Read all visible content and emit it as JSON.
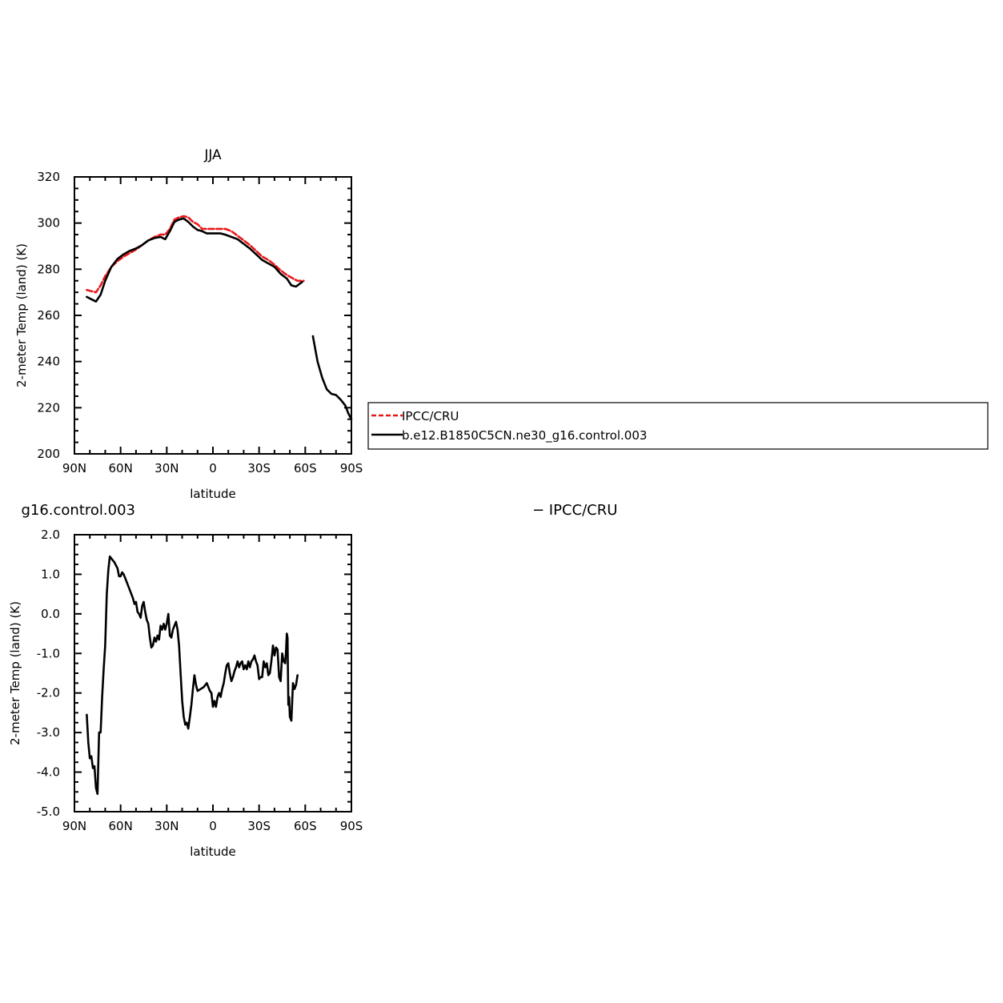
{
  "chart_data": [
    {
      "type": "line",
      "title": "JJA",
      "xlabel": "latitude",
      "ylabel": "2-meter Temp (land) (K)",
      "xlim": [
        90,
        -90
      ],
      "ylim": [
        200,
        320
      ],
      "xticks": [
        90,
        60,
        30,
        0,
        -30,
        -60,
        -90
      ],
      "xtick_labels": [
        "90N",
        "60N",
        "30N",
        "0",
        "30S",
        "60S",
        "90S"
      ],
      "yticks": [
        200,
        220,
        240,
        260,
        280,
        300,
        320
      ],
      "ytick_labels": [
        "200",
        "220",
        "240",
        "260",
        "280",
        "300",
        "320"
      ],
      "legend_position": "right",
      "series": [
        {
          "name": "IPCC/CRU",
          "color": "#e8181a",
          "dash": "dashed",
          "segments": [
            [
              [
                82,
                271
              ],
              [
                79,
                270.5
              ],
              [
                76,
                270
              ],
              [
                73,
                273
              ],
              [
                70,
                277
              ],
              [
                66,
                281
              ],
              [
                62,
                283.5
              ],
              [
                58,
                285.5
              ],
              [
                54,
                287
              ],
              [
                50,
                288.5
              ],
              [
                46,
                290.5
              ],
              [
                42,
                292.5
              ],
              [
                38,
                294
              ],
              [
                34,
                295
              ],
              [
                31,
                295
              ],
              [
                28,
                297.5
              ],
              [
                25,
                301.5
              ],
              [
                22,
                302.5
              ],
              [
                19,
                303
              ],
              [
                16,
                302.5
              ],
              [
                13,
                300.5
              ],
              [
                10,
                299.5
              ],
              [
                7,
                297.5
              ],
              [
                4,
                297.5
              ],
              [
                1,
                297.5
              ],
              [
                -2,
                297.5
              ],
              [
                -5,
                297.5
              ],
              [
                -8,
                297.5
              ],
              [
                -12,
                296.5
              ],
              [
                -16,
                294.5
              ],
              [
                -20,
                292.5
              ],
              [
                -24,
                290.5
              ],
              [
                -28,
                288
              ],
              [
                -32,
                285.5
              ],
              [
                -36,
                284
              ],
              [
                -40,
                282
              ],
              [
                -44,
                279.5
              ],
              [
                -48,
                277.5
              ],
              [
                -52,
                276
              ],
              [
                -55,
                275
              ],
              [
                -57,
                275
              ],
              [
                -59,
                275
              ]
            ]
          ]
        },
        {
          "name": "b.e12.B1850C5CN.ne30_g16.control.003",
          "color": "#000000",
          "dash": "solid",
          "segments": [
            [
              [
                82,
                268
              ],
              [
                79,
                267
              ],
              [
                76,
                266
              ],
              [
                73,
                269
              ],
              [
                70,
                275
              ],
              [
                66,
                281
              ],
              [
                62,
                284.5
              ],
              [
                58,
                286.5
              ],
              [
                54,
                288
              ],
              [
                50,
                289
              ],
              [
                46,
                290.5
              ],
              [
                42,
                292.5
              ],
              [
                38,
                293.5
              ],
              [
                34,
                294
              ],
              [
                31,
                293
              ],
              [
                28,
                296.5
              ],
              [
                25,
                300.5
              ],
              [
                22,
                301.5
              ],
              [
                19,
                302
              ],
              [
                16,
                300.5
              ],
              [
                13,
                298.5
              ],
              [
                10,
                297
              ],
              [
                7,
                296.5
              ],
              [
                4,
                295.5
              ],
              [
                1,
                295.5
              ],
              [
                -2,
                295.5
              ],
              [
                -5,
                295.5
              ],
              [
                -8,
                295
              ],
              [
                -12,
                294
              ],
              [
                -16,
                293
              ],
              [
                -20,
                291
              ],
              [
                -24,
                289
              ],
              [
                -28,
                286.5
              ],
              [
                -32,
                284
              ],
              [
                -36,
                282.5
              ],
              [
                -40,
                281
              ],
              [
                -44,
                278
              ],
              [
                -48,
                276
              ],
              [
                -51,
                273
              ],
              [
                -54,
                272.5
              ],
              [
                -56,
                273.5
              ],
              [
                -58,
                274.5
              ]
            ],
            [
              [
                -65,
                251
              ],
              [
                -68,
                240
              ],
              [
                -71,
                233
              ],
              [
                -74,
                228
              ],
              [
                -77,
                226
              ],
              [
                -80,
                225.5
              ],
              [
                -83,
                223.5
              ],
              [
                -86,
                221
              ],
              [
                -88,
                217.5
              ],
              [
                -90,
                215
              ]
            ]
          ]
        }
      ]
    },
    {
      "type": "line",
      "title": "",
      "xlabel": "latitude",
      "ylabel": "2-meter Temp (land) (K)",
      "xlim": [
        90,
        -90
      ],
      "ylim": [
        -5,
        2
      ],
      "xticks": [
        90,
        60,
        30,
        0,
        -30,
        -60,
        -90
      ],
      "xtick_labels": [
        "90N",
        "60N",
        "30N",
        "0",
        "30S",
        "60S",
        "90S"
      ],
      "yticks": [
        -5,
        -4,
        -3,
        -2,
        -1,
        0,
        1,
        2
      ],
      "ytick_labels": [
        "-5.0",
        "-4.0",
        "-3.0",
        "-2.0",
        "-1.0",
        "0.0",
        "1.0",
        "2.0"
      ],
      "series": [
        {
          "name": "",
          "color": "#000000",
          "dash": "solid",
          "segments": [
            [
              [
                82,
                -2.55
              ],
              [
                81,
                -3.25
              ],
              [
                80,
                -3.65
              ],
              [
                79,
                -3.6
              ],
              [
                78,
                -3.9
              ],
              [
                77,
                -3.85
              ],
              [
                76,
                -4.4
              ],
              [
                75,
                -4.55
              ],
              [
                74,
                -3.0
              ],
              [
                73,
                -3.0
              ],
              [
                72,
                -2.1
              ],
              [
                71,
                -1.4
              ],
              [
                70,
                -0.8
              ],
              [
                69,
                0.5
              ],
              [
                68,
                1.1
              ],
              [
                67,
                1.45
              ],
              [
                66,
                1.4
              ],
              [
                64,
                1.3
              ],
              [
                62,
                1.15
              ],
              [
                61,
                0.95
              ],
              [
                60,
                0.95
              ],
              [
                59,
                1.05
              ],
              [
                58,
                1.0
              ],
              [
                56,
                0.8
              ],
              [
                54,
                0.6
              ],
              [
                52,
                0.4
              ],
              [
                51,
                0.25
              ],
              [
                50,
                0.3
              ],
              [
                49,
                0.05
              ],
              [
                48,
                0.0
              ],
              [
                47,
                -0.1
              ],
              [
                46,
                0.2
              ],
              [
                45,
                0.3
              ],
              [
                44,
                0.05
              ],
              [
                43,
                -0.15
              ],
              [
                42,
                -0.25
              ],
              [
                41,
                -0.6
              ],
              [
                40,
                -0.85
              ],
              [
                39,
                -0.8
              ],
              [
                38,
                -0.6
              ],
              [
                37,
                -0.7
              ],
              [
                36,
                -0.55
              ],
              [
                35,
                -0.65
              ],
              [
                34,
                -0.3
              ],
              [
                33,
                -0.4
              ],
              [
                32,
                -0.25
              ],
              [
                31,
                -0.4
              ],
              [
                30,
                -0.25
              ],
              [
                29,
                0.0
              ],
              [
                28,
                -0.55
              ],
              [
                27,
                -0.6
              ],
              [
                26,
                -0.4
              ],
              [
                25,
                -0.3
              ],
              [
                24,
                -0.2
              ],
              [
                23,
                -0.4
              ],
              [
                22,
                -0.8
              ],
              [
                21,
                -1.5
              ],
              [
                20,
                -2.2
              ],
              [
                19,
                -2.6
              ],
              [
                18,
                -2.8
              ],
              [
                17,
                -2.75
              ],
              [
                16,
                -2.9
              ],
              [
                15,
                -2.6
              ],
              [
                14,
                -2.3
              ],
              [
                13,
                -1.9
              ],
              [
                12,
                -1.55
              ],
              [
                11,
                -1.8
              ],
              [
                10,
                -1.95
              ],
              [
                8,
                -1.9
              ],
              [
                6,
                -1.85
              ],
              [
                4,
                -1.75
              ],
              [
                2,
                -1.95
              ],
              [
                1,
                -2.0
              ],
              [
                0,
                -2.35
              ],
              [
                -1,
                -2.2
              ],
              [
                -2,
                -2.35
              ],
              [
                -3,
                -2.1
              ],
              [
                -4,
                -2.0
              ],
              [
                -5,
                -2.1
              ],
              [
                -6,
                -1.9
              ],
              [
                -7,
                -1.75
              ],
              [
                -8,
                -1.5
              ],
              [
                -9,
                -1.3
              ],
              [
                -10,
                -1.25
              ],
              [
                -11,
                -1.5
              ],
              [
                -12,
                -1.7
              ],
              [
                -13,
                -1.6
              ],
              [
                -14,
                -1.45
              ],
              [
                -15,
                -1.35
              ],
              [
                -16,
                -1.2
              ],
              [
                -17,
                -1.35
              ],
              [
                -18,
                -1.25
              ],
              [
                -19,
                -1.2
              ],
              [
                -20,
                -1.4
              ],
              [
                -21,
                -1.3
              ],
              [
                -22,
                -1.4
              ],
              [
                -23,
                -1.2
              ],
              [
                -24,
                -1.35
              ],
              [
                -25,
                -1.2
              ],
              [
                -26,
                -1.15
              ],
              [
                -27,
                -1.05
              ],
              [
                -28,
                -1.2
              ],
              [
                -29,
                -1.3
              ],
              [
                -30,
                -1.65
              ],
              [
                -31,
                -1.6
              ],
              [
                -32,
                -1.6
              ],
              [
                -33,
                -1.2
              ],
              [
                -34,
                -1.35
              ],
              [
                -35,
                -1.25
              ],
              [
                -36,
                -1.55
              ],
              [
                -37,
                -1.5
              ],
              [
                -38,
                -1.2
              ],
              [
                -39,
                -0.8
              ],
              [
                -40,
                -1.05
              ],
              [
                -41,
                -0.85
              ],
              [
                -42,
                -0.9
              ],
              [
                -43,
                -1.6
              ],
              [
                -44,
                -1.7
              ],
              [
                -45,
                -1.0
              ],
              [
                -46,
                -1.2
              ],
              [
                -47,
                -1.25
              ],
              [
                -47.5,
                -0.95
              ],
              [
                -48,
                -0.5
              ],
              [
                -48.5,
                -0.6
              ],
              [
                -49,
                -2.3
              ],
              [
                -49.5,
                -2.1
              ],
              [
                -50,
                -2.6
              ],
              [
                -51,
                -2.7
              ],
              [
                -52,
                -1.75
              ],
              [
                -53,
                -1.9
              ],
              [
                -54,
                -1.8
              ],
              [
                -55,
                -1.55
              ]
            ]
          ]
        }
      ]
    }
  ],
  "panel2_subtitle_left": "g16.control.003",
  "panel2_subtitle_right": "− IPCC/CRU"
}
